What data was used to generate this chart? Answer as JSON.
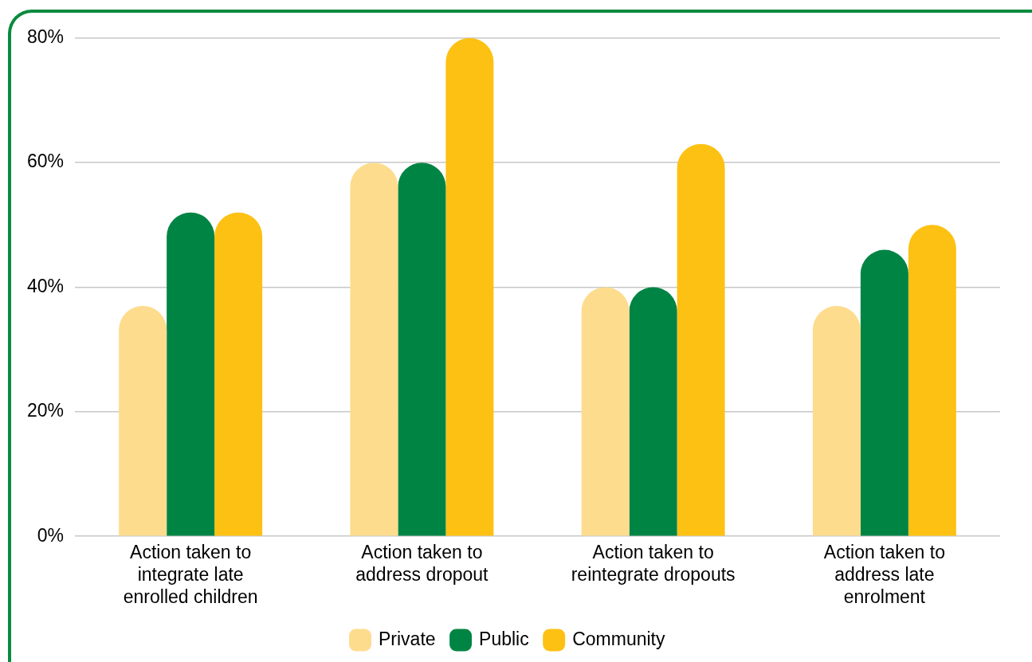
{
  "chart_data": {
    "type": "bar",
    "categories": [
      "Action taken to integrate late enrolled children",
      "Action taken to address dropout",
      "Action taken to reintegrate dropouts",
      "Action taken to address late enrolment"
    ],
    "series": [
      {
        "name": "Private",
        "color": "#fddc8e",
        "values": [
          37,
          60,
          40,
          37
        ]
      },
      {
        "name": "Public",
        "color": "#008444",
        "values": [
          52,
          60,
          40,
          46
        ]
      },
      {
        "name": "Community",
        "color": "#fdc113",
        "values": [
          52,
          80,
          63,
          50
        ]
      }
    ],
    "ylim": [
      0,
      80
    ],
    "yticks": [
      {
        "value": 0,
        "label": "0%"
      },
      {
        "value": 20,
        "label": "20%"
      },
      {
        "value": 40,
        "label": "40%"
      },
      {
        "value": 60,
        "label": "60%"
      },
      {
        "value": 80,
        "label": "80%"
      }
    ],
    "grid": "y",
    "legend": "bottom"
  }
}
